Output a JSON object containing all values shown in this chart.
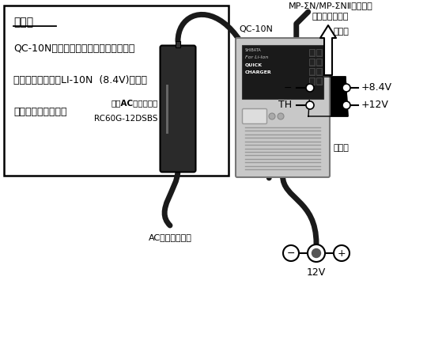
{
  "bg_color": "#ffffff",
  "text_box_title": "接続図",
  "text_lines": [
    "QC-10Nは右図のような電源構造のため",
    "本体動作と充電池LI-10N  (8.4V)の充電",
    "が同時に行えます。"
  ],
  "connector_label_top": "MP-ΣN/MP-ΣNⅡシリーズ",
  "connector_label_sub": "電源コネクタへ",
  "pin_left_labels": [
    "−",
    "TH"
  ],
  "pin_right_labels": [
    "+8.4V",
    "+12V"
  ],
  "adapter_label1": "専用ACアダプター",
  "adapter_label2": "RC60G-12DSBS",
  "charger_label": "QC-10N",
  "output_label": "出力側",
  "input_label": "入力側",
  "input_v_label": "12V",
  "ac_label": "ACコンセントへ",
  "colors": {
    "black": "#000000",
    "adapter_body": "#2a2a2a",
    "charger_silver": "#c8c8c8",
    "charger_display": "#1a1a1a",
    "cable": "#1a1a1a",
    "white": "#ffffff",
    "gray_mid": "#888888",
    "gray_light": "#cccccc",
    "gray_dark": "#444444"
  }
}
